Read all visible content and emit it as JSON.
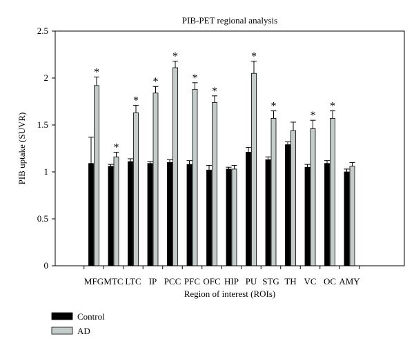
{
  "chart_data": {
    "type": "bar",
    "title": "PIB-PET regional analysis",
    "xlabel": "Region of interest (ROIs)",
    "ylabel": "PIB uptake (SUVR)",
    "ylim": [
      0,
      2.5
    ],
    "yticks": [
      "0",
      "0.5",
      "1",
      "1.5",
      "2",
      "2.5"
    ],
    "ytick_values": [
      0,
      0.5,
      1,
      1.5,
      2,
      2.5
    ],
    "categories": [
      "MFG",
      "MTC",
      "LTC",
      "IP",
      "PCC",
      "PFC",
      "OFC",
      "HIP",
      "PU",
      "STG",
      "TH",
      "VC",
      "OC",
      "AMY"
    ],
    "series": [
      {
        "name": "Control",
        "color": "#000000",
        "values": [
          1.09,
          1.06,
          1.11,
          1.09,
          1.1,
          1.08,
          1.02,
          1.03,
          1.21,
          1.13,
          1.29,
          1.05,
          1.09,
          1.0
        ],
        "errors": [
          0.28,
          0.02,
          0.03,
          0.02,
          0.03,
          0.04,
          0.05,
          0.02,
          0.05,
          0.03,
          0.03,
          0.03,
          0.03,
          0.03
        ]
      },
      {
        "name": "AD",
        "color": "#c4cbcb",
        "values": [
          1.92,
          1.16,
          1.63,
          1.84,
          2.11,
          1.88,
          1.74,
          1.03,
          2.05,
          1.57,
          1.44,
          1.46,
          1.57,
          1.06
        ],
        "errors": [
          0.09,
          0.05,
          0.08,
          0.07,
          0.07,
          0.07,
          0.07,
          0.04,
          0.13,
          0.08,
          0.09,
          0.09,
          0.08,
          0.04
        ]
      }
    ],
    "significance": {
      "marker": "*",
      "flags": [
        true,
        true,
        true,
        true,
        true,
        true,
        true,
        false,
        true,
        true,
        false,
        true,
        true,
        false
      ]
    },
    "grid": false,
    "legend_position": "bottom-left"
  }
}
